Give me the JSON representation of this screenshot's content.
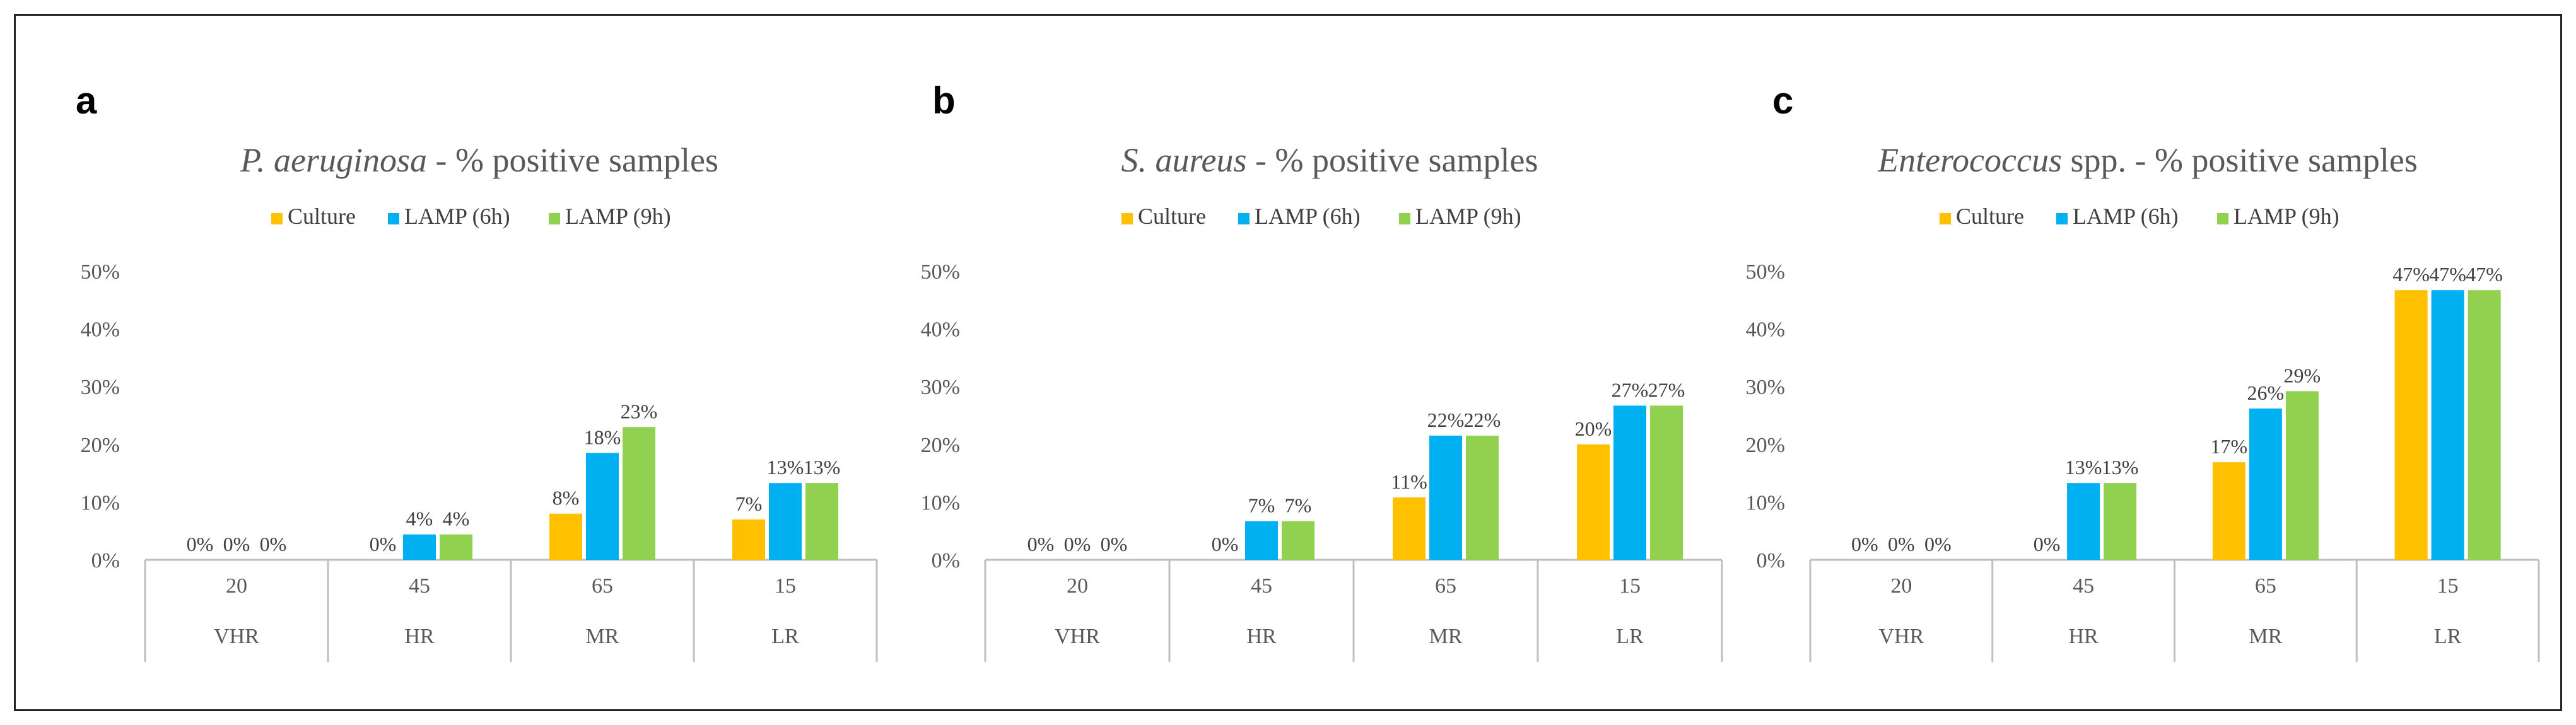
{
  "figure": {
    "legend_labels": [
      "Culture",
      "LAMP (6h)",
      "LAMP (9h)"
    ],
    "colors": {
      "Culture": "#FFC000",
      "LAMP (6h)": "#00B0F0",
      "LAMP (9h)": "#92D050",
      "axis": "#BFBFBF"
    }
  },
  "chart_data": [
    {
      "type": "bar",
      "panel": "a",
      "title_italic": "P. aeruginosa",
      "title_rest": " - % positive samples",
      "categories": [
        "VHR",
        "HR",
        "MR",
        "LR"
      ],
      "category_counts": [
        "20",
        "45",
        "65",
        "15"
      ],
      "yticks": [
        "0%",
        "10%",
        "20%",
        "30%",
        "40%",
        "50%"
      ],
      "ylim": [
        0,
        50
      ],
      "series": [
        {
          "name": "Culture",
          "values": [
            0,
            0,
            8,
            7
          ],
          "labels": [
            "0%",
            "0%",
            "8%",
            "7%"
          ]
        },
        {
          "name": "LAMP (6h)",
          "values": [
            0,
            4.4,
            18.5,
            13.3
          ],
          "labels": [
            "0%",
            "4%",
            "18%",
            "13%"
          ]
        },
        {
          "name": "LAMP (9h)",
          "values": [
            0,
            4.4,
            23,
            13.3
          ],
          "labels": [
            "0%",
            "4%",
            "23%",
            "13%"
          ]
        }
      ]
    },
    {
      "type": "bar",
      "panel": "b",
      "title_italic": "S. aureus",
      "title_rest": " - % positive samples",
      "categories": [
        "VHR",
        "HR",
        "MR",
        "LR"
      ],
      "category_counts": [
        "20",
        "45",
        "65",
        "15"
      ],
      "yticks": [
        "0%",
        "10%",
        "20%",
        "30%",
        "40%",
        "50%"
      ],
      "ylim": [
        0,
        50
      ],
      "series": [
        {
          "name": "Culture",
          "values": [
            0,
            0,
            10.8,
            20
          ],
          "labels": [
            "0%",
            "0%",
            "11%",
            "20%"
          ]
        },
        {
          "name": "LAMP (6h)",
          "values": [
            0,
            6.7,
            21.5,
            26.7
          ],
          "labels": [
            "0%",
            "7%",
            "22%",
            "27%"
          ]
        },
        {
          "name": "LAMP (9h)",
          "values": [
            0,
            6.7,
            21.5,
            26.7
          ],
          "labels": [
            "0%",
            "7%",
            "22%",
            "27%"
          ]
        }
      ]
    },
    {
      "type": "bar",
      "panel": "c",
      "title_italic": "Enterococcus",
      "title_rest": " spp. - % positive samples",
      "categories": [
        "VHR",
        "HR",
        "MR",
        "LR"
      ],
      "category_counts": [
        "20",
        "45",
        "65",
        "15"
      ],
      "yticks": [
        "0%",
        "10%",
        "20%",
        "30%",
        "40%",
        "50%"
      ],
      "ylim": [
        0,
        50
      ],
      "series": [
        {
          "name": "Culture",
          "values": [
            0,
            0,
            16.9,
            46.7
          ],
          "labels": [
            "0%",
            "0%",
            "17%",
            "47%"
          ]
        },
        {
          "name": "LAMP (6h)",
          "values": [
            0,
            13.3,
            26.2,
            46.7
          ],
          "labels": [
            "0%",
            "13%",
            "26%",
            "47%"
          ]
        },
        {
          "name": "LAMP (9h)",
          "values": [
            0,
            13.3,
            29.2,
            46.7
          ],
          "labels": [
            "0%",
            "13%",
            "29%",
            "47%"
          ]
        }
      ]
    }
  ]
}
